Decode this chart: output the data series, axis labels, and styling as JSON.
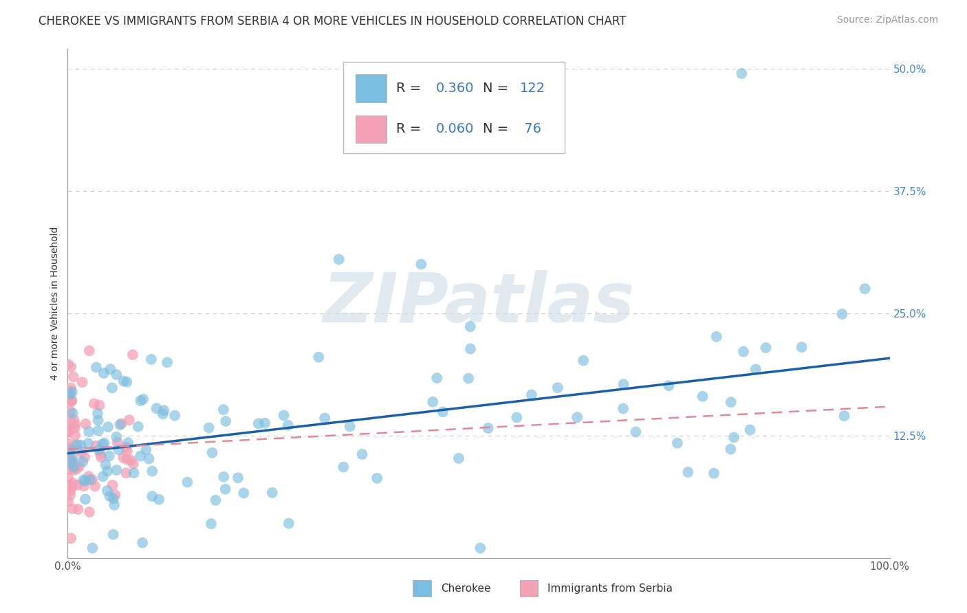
{
  "title": "CHEROKEE VS IMMIGRANTS FROM SERBIA 4 OR MORE VEHICLES IN HOUSEHOLD CORRELATION CHART",
  "source": "Source: ZipAtlas.com",
  "ylabel": "4 or more Vehicles in Household",
  "watermark": "ZIPatlas",
  "xlim": [
    0.0,
    100.0
  ],
  "ylim": [
    0.0,
    52.0
  ],
  "ytick_vals": [
    0.0,
    12.5,
    25.0,
    37.5,
    50.0
  ],
  "ytick_labels": [
    "",
    "12.5%",
    "25.0%",
    "37.5%",
    "50.0%"
  ],
  "xtick_vals": [
    0.0,
    100.0
  ],
  "xtick_labels": [
    "0.0%",
    "100.0%"
  ],
  "series1_name": "Cherokee",
  "series1_color": "#7bbde0",
  "series1_edge": "#5a9ec8",
  "series1_N": 122,
  "series1_R": 0.36,
  "series2_name": "Immigrants from Serbia",
  "series2_color": "#f4a0b5",
  "series2_edge": "#e07090",
  "series2_N": 76,
  "series2_R": 0.06,
  "trendline1_color": "#1a5fa8",
  "trendline2_color": "#e08898",
  "legend_num_color": "#3878c5",
  "grid_color": "#cccccc",
  "background_color": "#ffffff",
  "title_fontsize": 12,
  "source_fontsize": 10,
  "ylabel_fontsize": 10,
  "tick_fontsize": 11,
  "legend_fontsize": 14,
  "watermark_color": "#d0dde8",
  "watermark_fontsize": 72
}
